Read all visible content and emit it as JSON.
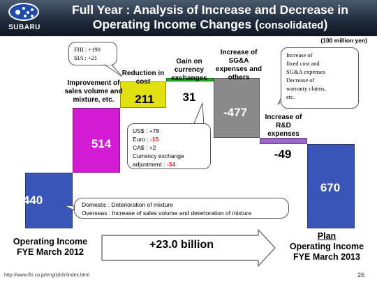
{
  "header": {
    "logo_text": "SUBARU",
    "title_line1": "Full Year : Analysis of Increase and Decrease in",
    "title_line2": "Operating Income Changes (",
    "title_line2_small": "consolidated",
    "title_line2_end": ")"
  },
  "unit": "(100 million yen)",
  "chart_data": {
    "type": "waterfall",
    "start": {
      "label": "Operating Income FYE March 2012",
      "value": 440
    },
    "steps": [
      {
        "label": "Improvement of sales volume and mixture, etc.",
        "value": 514
      },
      {
        "label": "Reduction in cost",
        "value": 211
      },
      {
        "label": "Gain on currency exchanges",
        "value": 31
      },
      {
        "label": "Increase of SG&A expenses and others",
        "value": -477
      },
      {
        "label": "Increase of R&D expenses",
        "value": -49
      }
    ],
    "end": {
      "label": "Plan Operating Income FYE March 2013",
      "value": 670
    },
    "total_change": "+23.0 billion"
  },
  "labels": {
    "start": "440",
    "improvement": "514",
    "cost": "211",
    "currency": "31",
    "sga": "-477",
    "rd": "-49",
    "end": "670",
    "improvement_cat": "Improvement of sales volume and mixture, etc.",
    "cost_cat": "Reduction in cost",
    "currency_cat": "Gain on currency exchanges",
    "sga_cat": "Increase of SG&A expenses and others",
    "rd_cat": "Increase of R&D expenses"
  },
  "colors": {
    "start": "#3a55b8",
    "improvement": "#d31bd4",
    "cost": "#e0e010",
    "currency": "#22b022",
    "sga": "#8a8a8a",
    "rd": "#9a66c8",
    "end": "#3a55b8"
  },
  "callouts": {
    "fhi_sia": [
      "FHI : +190",
      "SIA : +21"
    ],
    "currency": {
      "usd_label": "US$ : ",
      "usd_value": "+78",
      "euro_label": "Euro : ",
      "euro_value": "-15",
      "cad_label": "CA$ : ",
      "cad_value": "+2",
      "adj_label": "Currency exchange",
      "adj_label2": "adjustment : ",
      "adj_value": "-34"
    },
    "sga": [
      "Increase of",
      "fixed cost and",
      "SG&A expenses",
      "Decrease of",
      "warranty claims,",
      "etc."
    ],
    "mixture": [
      "Domestic : Deterioration of mixture",
      "Overseas : Increase of sales volume and deterioration of mixture"
    ]
  },
  "bottom": {
    "left_line1": "Operating Income",
    "left_line2": "FYE March 2012",
    "right_plan": "Plan",
    "right_line1": "Operating Income",
    "right_line2": "FYE March 2013",
    "arrow_text": "+23.0 billion"
  },
  "footer": {
    "url": "http://www.fhi.co.jp/english/ir/index.html",
    "page": "26"
  }
}
